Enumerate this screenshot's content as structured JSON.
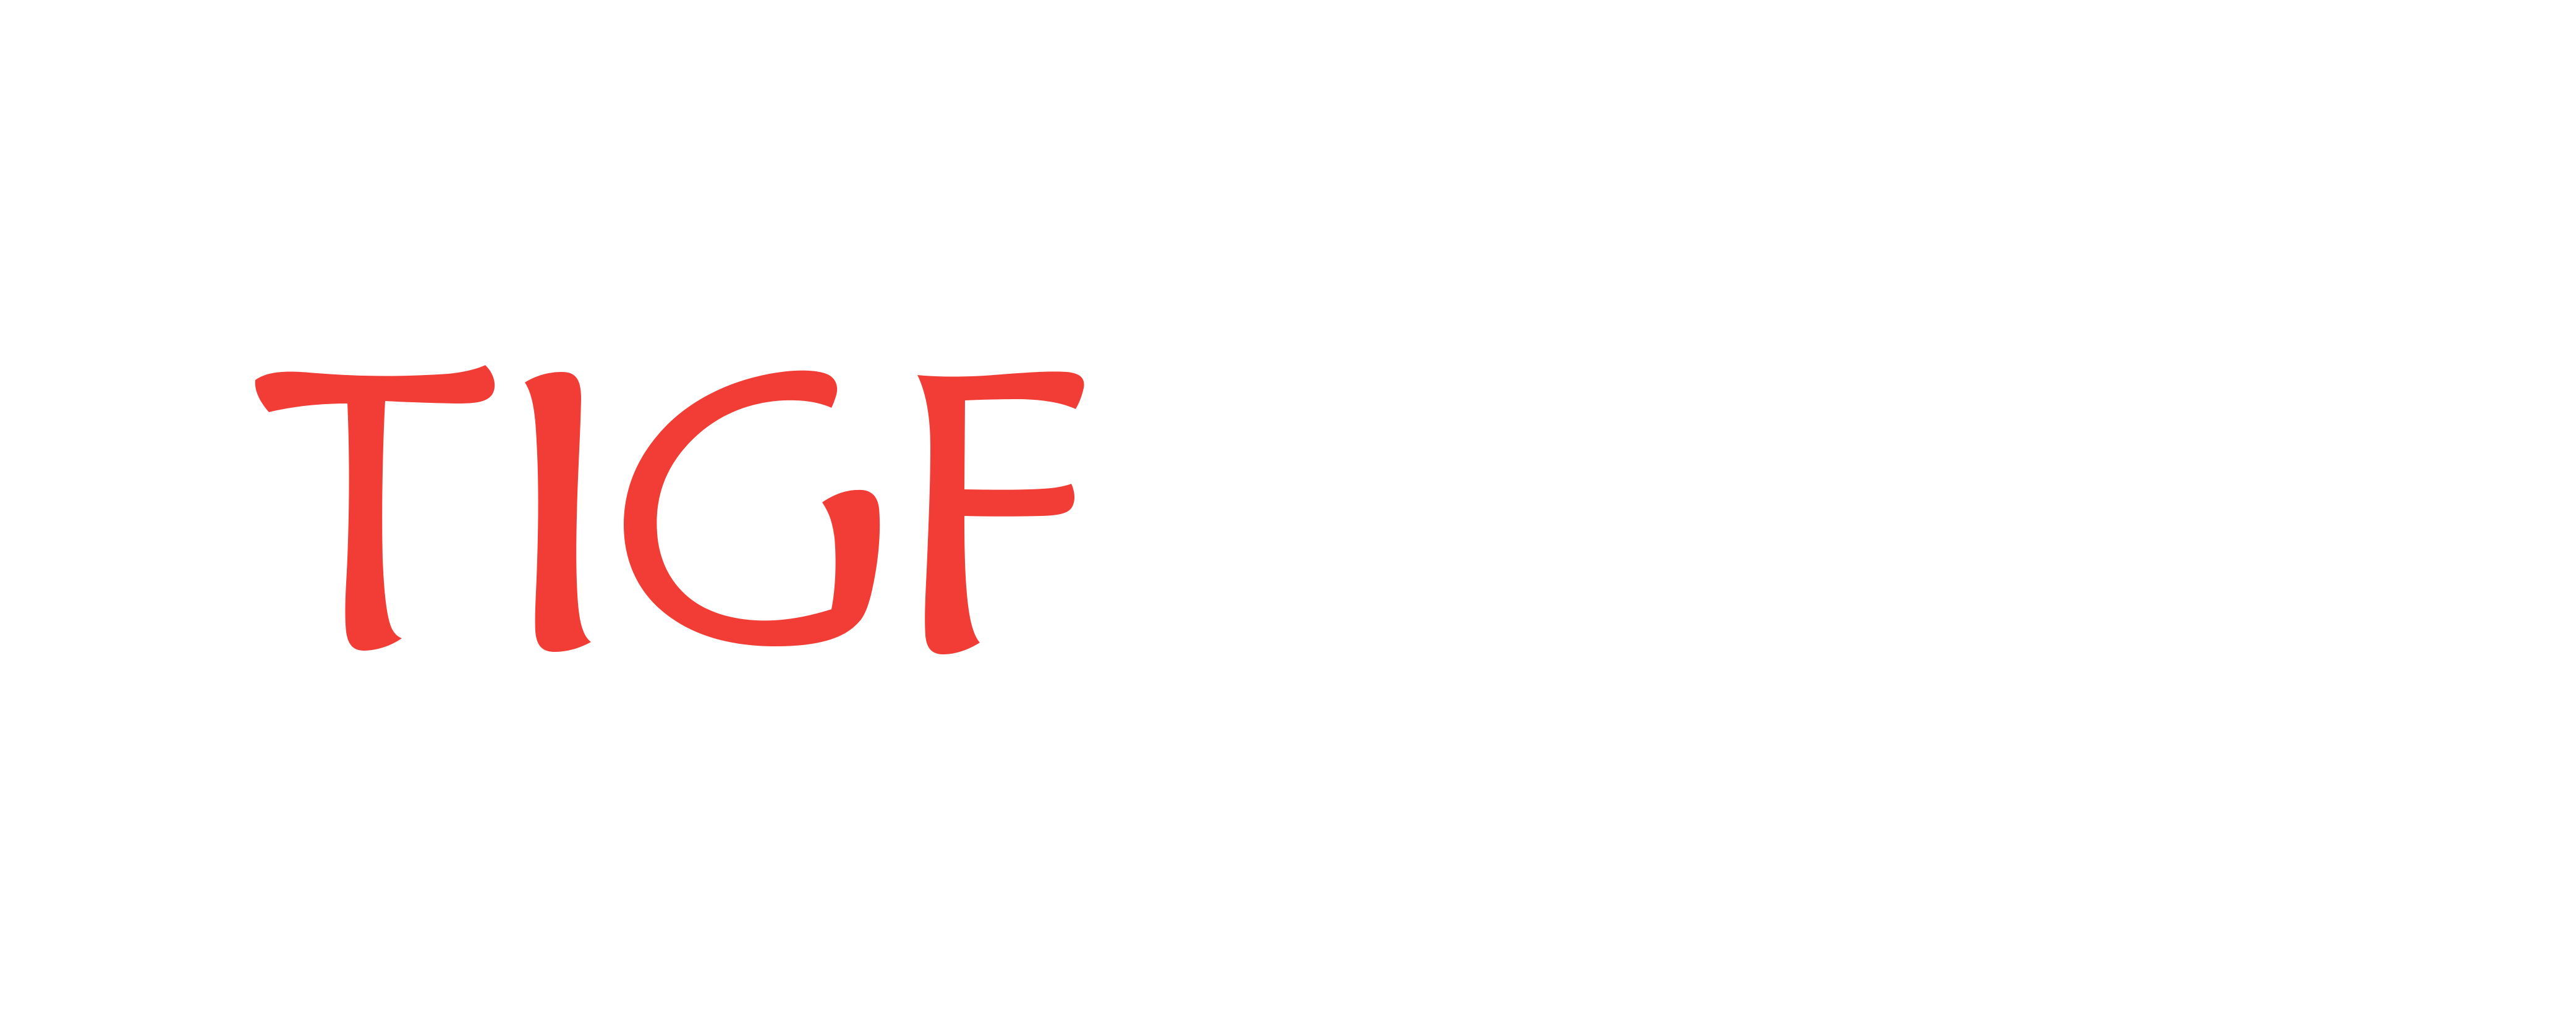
{
  "logo": {
    "text": "TIGF",
    "color": "#f23d36"
  }
}
